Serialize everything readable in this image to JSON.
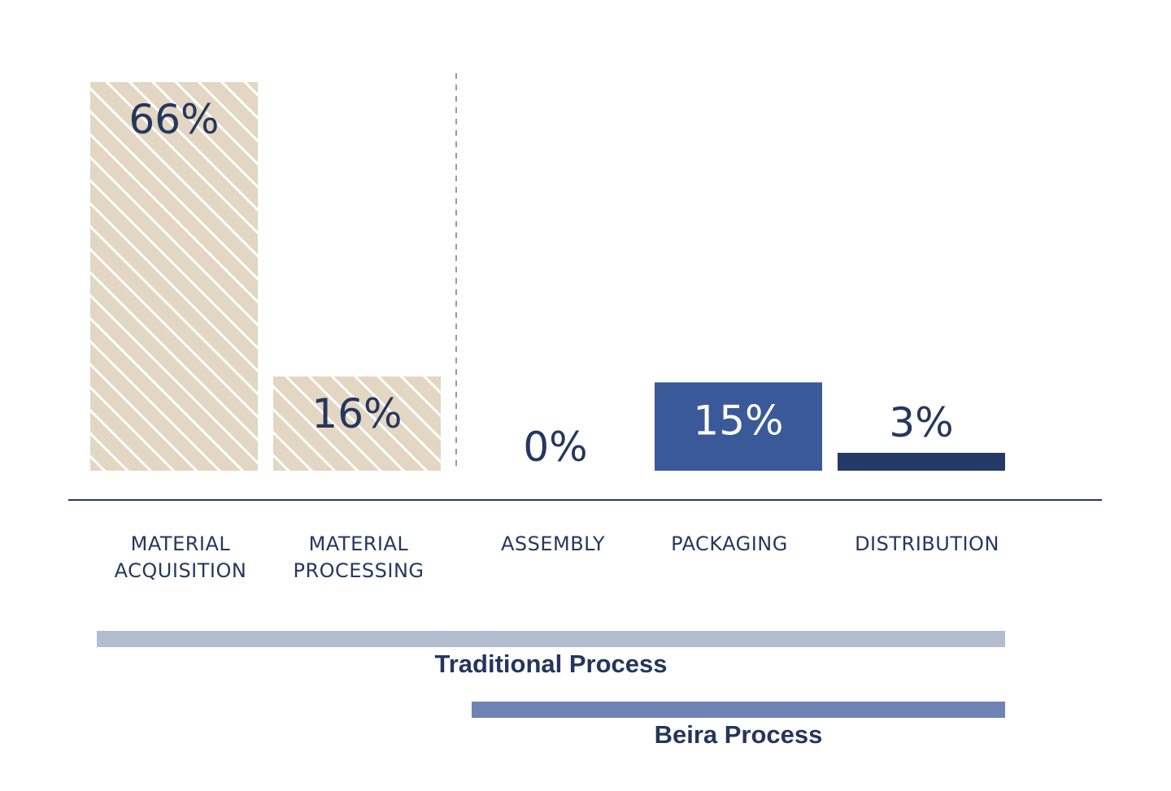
{
  "chart_data": {
    "type": "bar",
    "categories": [
      [
        "MATERIAL",
        "ACQUISITION"
      ],
      [
        "MATERIAL",
        "PROCESSING"
      ],
      [
        "ASSEMBLY"
      ],
      [
        "PACKAGING"
      ],
      [
        "DISTRIBUTION"
      ]
    ],
    "values": [
      66,
      16,
      0,
      15,
      3
    ],
    "value_labels": [
      "66%",
      "16%",
      "0%",
      "15%",
      "3%"
    ],
    "bar_styles": [
      "hatched",
      "hatched",
      "none",
      "solid",
      "solid"
    ],
    "bar_colors": [
      "#e3d6c2",
      "#e3d6c2",
      "#ffffff",
      "#3a5998",
      "#243a66"
    ],
    "value_label_colors": [
      "#26375e",
      "#26375e",
      "#26375e",
      "#ffffff",
      "#26375e"
    ],
    "ylim": [
      0,
      66
    ],
    "grid": false,
    "divider": "dashed vertical line between Material Processing and Assembly",
    "process_ranges": [
      {
        "label": "Traditional Process",
        "from_category": 0,
        "to_category": 4,
        "color": "#b3bdd0"
      },
      {
        "label": "Beira Process",
        "from_category": 2,
        "to_category": 4,
        "color": "#6e84b4"
      }
    ]
  },
  "colors": {
    "axis": "#26375e",
    "hatch_fill": "#e3d6c2",
    "text_dark": "#26375e"
  }
}
